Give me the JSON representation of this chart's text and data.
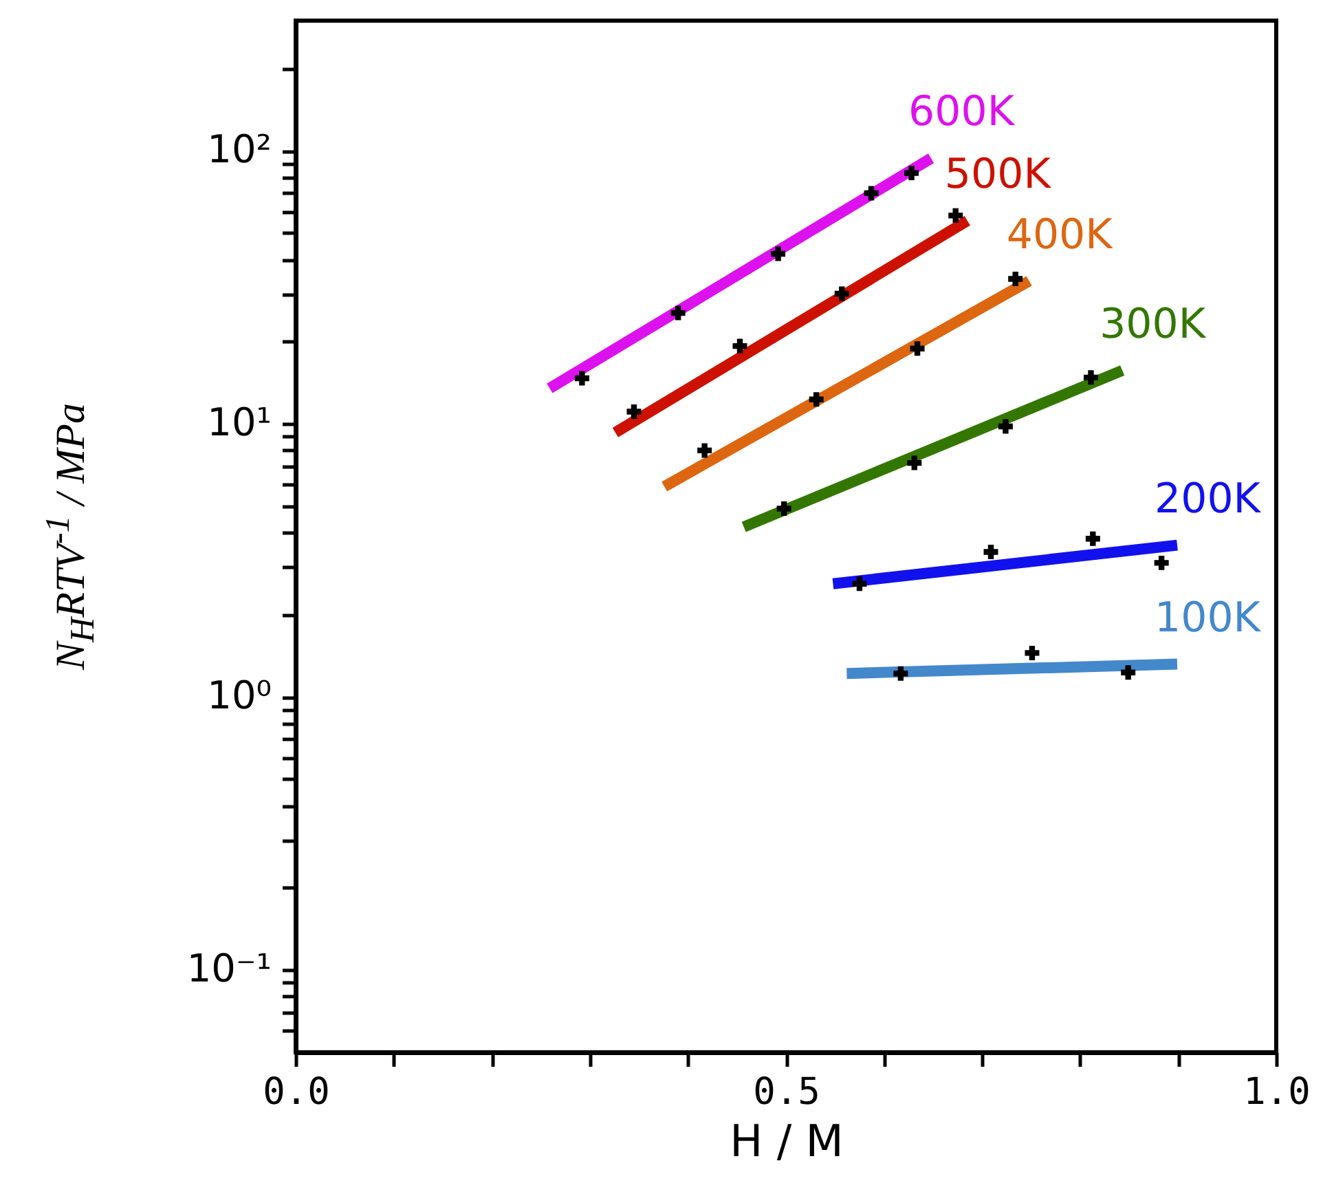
{
  "chart_data": {
    "type": "line",
    "xlabel": "H / M",
    "ylabel": "N$_{H}$RTV$^{-1}$ / MPa",
    "log": "y",
    "xlim": [
      0,
      1
    ],
    "ylim": [
      0.05,
      300
    ],
    "xticks": [
      {
        "value": 0,
        "label": "0.0"
      },
      {
        "value": 0.1,
        "label": null
      },
      {
        "value": 0.2,
        "label": null
      },
      {
        "value": 0.3,
        "label": null
      },
      {
        "value": 0.4,
        "label": null
      },
      {
        "value": 0.5,
        "label": "0.5"
      },
      {
        "value": 0.6,
        "label": null
      },
      {
        "value": 0.7,
        "label": null
      },
      {
        "value": 0.8,
        "label": null
      },
      {
        "value": 0.9,
        "label": null
      },
      {
        "value": 1,
        "label": "1.0"
      }
    ],
    "yticks": [
      {
        "value": 0.06,
        "label": null
      },
      {
        "value": 0.07,
        "label": null
      },
      {
        "value": 0.08,
        "label": null
      },
      {
        "value": 0.09,
        "label": null
      },
      {
        "value": 0.1,
        "label": "10⁻¹"
      },
      {
        "value": 0.2,
        "label": null
      },
      {
        "value": 0.3,
        "label": null
      },
      {
        "value": 0.4,
        "label": null
      },
      {
        "value": 0.5,
        "label": null
      },
      {
        "value": 0.6,
        "label": null
      },
      {
        "value": 0.7,
        "label": null
      },
      {
        "value": 0.8,
        "label": null
      },
      {
        "value": 0.9,
        "label": null
      },
      {
        "value": 1,
        "label": "10⁰"
      },
      {
        "value": 2,
        "label": null
      },
      {
        "value": 3,
        "label": null
      },
      {
        "value": 4,
        "label": null
      },
      {
        "value": 5,
        "label": null
      },
      {
        "value": 6,
        "label": null
      },
      {
        "value": 7,
        "label": null
      },
      {
        "value": 8,
        "label": null
      },
      {
        "value": 9,
        "label": null
      },
      {
        "value": 10,
        "label": "10¹"
      },
      {
        "value": 20,
        "label": null
      },
      {
        "value": 30,
        "label": null
      },
      {
        "value": 40,
        "label": null
      },
      {
        "value": 50,
        "label": null
      },
      {
        "value": 60,
        "label": null
      },
      {
        "value": 70,
        "label": null
      },
      {
        "value": 80,
        "label": null
      },
      {
        "value": 90,
        "label": null
      },
      {
        "value": 100,
        "label": "10²"
      },
      {
        "value": 200,
        "label": null
      }
    ],
    "series": [
      {
        "name": "600K",
        "type": "line",
        "color": "#dd11ee",
        "x": [
          0.259,
          0.648
        ],
        "values": [
          13.5,
          94
        ]
      },
      {
        "name": "500K",
        "type": "line",
        "color": "#cc1100",
        "x": [
          0.326,
          0.685
        ],
        "values": [
          9.3,
          55.5
        ]
      },
      {
        "name": "400K",
        "type": "line",
        "color": "#dd6611",
        "x": [
          0.376,
          0.748
        ],
        "values": [
          5.9,
          33.4
        ]
      },
      {
        "name": "300K",
        "type": "line",
        "color": "#337700",
        "x": [
          0.457,
          0.843
        ],
        "values": [
          4.2,
          15.7
        ]
      },
      {
        "name": "200K",
        "type": "line",
        "color": "#1111ee",
        "x": [
          0.548,
          0.899
        ],
        "values": [
          2.6,
          3.6
        ]
      },
      {
        "name": "100K",
        "type": "line",
        "color": "#4488cc",
        "x": [
          0.562,
          0.899
        ],
        "values": [
          1.22,
          1.32
        ]
      },
      {
        "type": "scatter",
        "marker": "cross",
        "color": "#000000",
        "x": [
          0.292,
          0.39,
          0.492,
          0.587,
          0.628,
          0.345,
          0.453,
          0.557,
          0.673,
          0.417,
          0.531,
          0.634,
          0.734,
          0.498,
          0.631,
          0.724,
          0.811,
          0.575,
          0.709,
          0.813,
          0.883,
          0.617,
          0.751,
          0.849
        ],
        "values": [
          14.7,
          25.5,
          42,
          70,
          83,
          11.1,
          19.3,
          30,
          58,
          8.0,
          12.3,
          18.9,
          34,
          4.9,
          7.2,
          9.8,
          14.8,
          2.6,
          3.4,
          3.8,
          3.1,
          1.22,
          1.45,
          1.23
        ]
      }
    ]
  }
}
